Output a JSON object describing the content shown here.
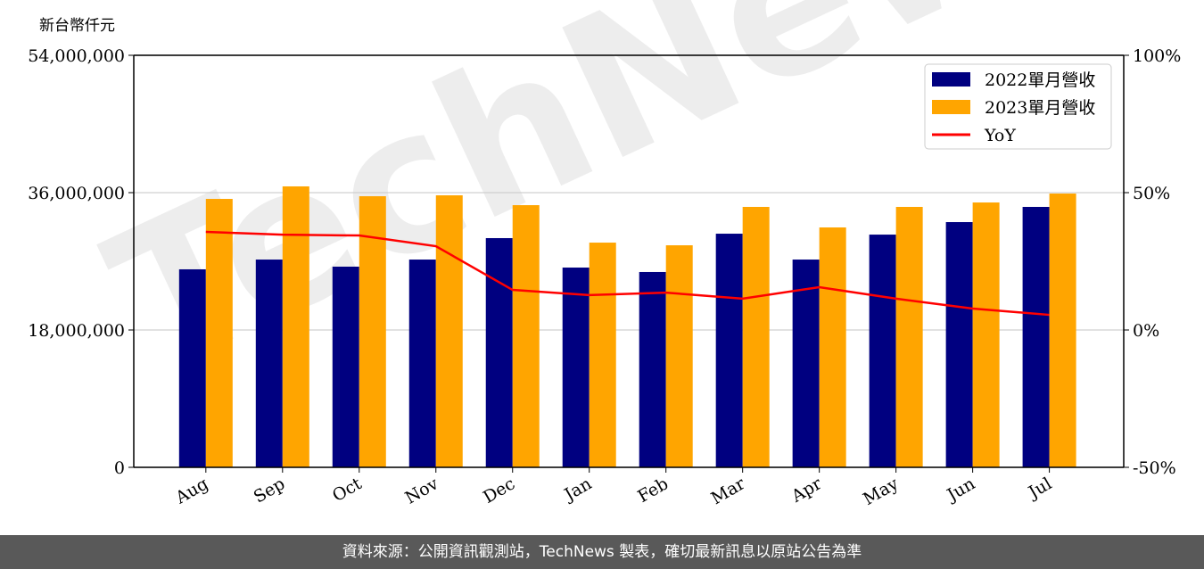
{
  "chart_data": {
    "type": "bar",
    "ylabel": "新台幣仟元",
    "categories": [
      "Aug",
      "Sep",
      "Oct",
      "Nov",
      "Dec",
      "Jan",
      "Feb",
      "Mar",
      "Apr",
      "May",
      "Jun",
      "Jul"
    ],
    "series": [
      {
        "name": "2022單月營收",
        "type": "bar",
        "color": "#000080",
        "values": [
          25950000,
          27230000,
          26300000,
          27230000,
          30040000,
          26180000,
          25600000,
          30620000,
          27230000,
          30500000,
          32140000,
          34130000
        ]
      },
      {
        "name": "2023單月營收",
        "type": "bar",
        "color": "#FFA500",
        "values": [
          35180000,
          36820000,
          35530000,
          35650000,
          34360000,
          29450000,
          29100000,
          34130000,
          31440000,
          34130000,
          34710000,
          35880000
        ]
      },
      {
        "name": "YoY",
        "type": "line",
        "color": "#FF0000",
        "axis": "right",
        "values": [
          35.7,
          34.7,
          34.4,
          30.5,
          14.6,
          12.7,
          13.6,
          11.4,
          15.6,
          11.4,
          7.8,
          5.5
        ]
      }
    ],
    "ylim": [
      0,
      54000000
    ],
    "yticks": [
      "0",
      "18,000,000",
      "36,000,000",
      "54,000,000"
    ],
    "y2lim": [
      -50,
      100
    ],
    "y2ticks": [
      "-50%",
      "0%",
      "50%",
      "100%"
    ],
    "grid": "horizontal",
    "legend": "top-right"
  },
  "watermark": "TechNews",
  "footer": "資料來源：公開資訊觀測站，TechNews 製表，確切最新訊息以原站公告為準"
}
